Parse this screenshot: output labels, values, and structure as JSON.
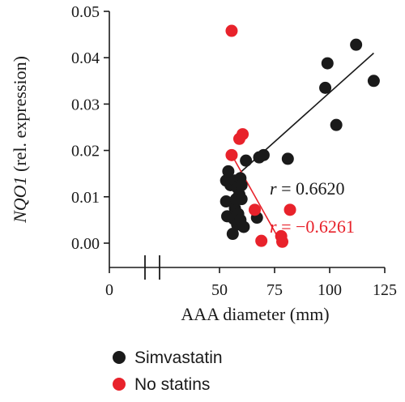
{
  "chart_data": {
    "type": "scatter",
    "xlabel": "AAA diameter (mm)",
    "ylabel_italic": "NQO1",
    "ylabel_rest": " (rel. expression)",
    "xlim": [
      0,
      125
    ],
    "ylim": [
      0,
      0.05
    ],
    "x_ticks": [
      0,
      50,
      75,
      100,
      125
    ],
    "x_tick_labels": [
      "0",
      "50",
      "75",
      "100",
      "125"
    ],
    "y_ticks": [
      0.0,
      0.01,
      0.02,
      0.03,
      0.04,
      0.05
    ],
    "y_tick_labels": [
      "0.00",
      "0.01",
      "0.02",
      "0.03",
      "0.04",
      "0.05"
    ],
    "axis_break": "x between 0 and 50",
    "legend_position": "bottom-left",
    "series": [
      {
        "name": "Simvastatin",
        "color": "#1a1a1a",
        "points": [
          {
            "x": 53,
            "y": 0.0135
          },
          {
            "x": 53,
            "y": 0.009
          },
          {
            "x": 53.5,
            "y": 0.0058
          },
          {
            "x": 54,
            "y": 0.0155
          },
          {
            "x": 55,
            "y": 0.0125
          },
          {
            "x": 56,
            "y": 0.002
          },
          {
            "x": 56.5,
            "y": 0.0052
          },
          {
            "x": 57,
            "y": 0.0135
          },
          {
            "x": 57,
            "y": 0.0075
          },
          {
            "x": 57.5,
            "y": 0.0095
          },
          {
            "x": 58,
            "y": 0.012
          },
          {
            "x": 58,
            "y": 0.004
          },
          {
            "x": 58.5,
            "y": 0.0063
          },
          {
            "x": 59,
            "y": 0.0105
          },
          {
            "x": 59.5,
            "y": 0.014
          },
          {
            "x": 59.5,
            "y": 0.005
          },
          {
            "x": 60,
            "y": 0.0095
          },
          {
            "x": 60,
            "y": 0.0125
          },
          {
            "x": 61,
            "y": 0.0035
          },
          {
            "x": 62,
            "y": 0.0178
          },
          {
            "x": 67,
            "y": 0.0055
          },
          {
            "x": 68,
            "y": 0.0185
          },
          {
            "x": 70,
            "y": 0.019
          },
          {
            "x": 81,
            "y": 0.0182
          },
          {
            "x": 98,
            "y": 0.0335
          },
          {
            "x": 99,
            "y": 0.0388
          },
          {
            "x": 103,
            "y": 0.0255
          },
          {
            "x": 112,
            "y": 0.0428
          },
          {
            "x": 120,
            "y": 0.035
          }
        ],
        "fit": {
          "x": [
            53,
            120
          ],
          "y": [
            0.0125,
            0.041
          ]
        },
        "r_label": "r",
        "r_value": " = 0.6620"
      },
      {
        "name": "No statins",
        "color": "#e8222b",
        "points": [
          {
            "x": 55.5,
            "y": 0.0458
          },
          {
            "x": 55.5,
            "y": 0.019
          },
          {
            "x": 59,
            "y": 0.0225
          },
          {
            "x": 60.5,
            "y": 0.0235
          },
          {
            "x": 66,
            "y": 0.0072
          },
          {
            "x": 69,
            "y": 0.0005
          },
          {
            "x": 78,
            "y": 0.0015
          },
          {
            "x": 78.5,
            "y": 0.0003
          },
          {
            "x": 82,
            "y": 0.0072
          }
        ],
        "fit": {
          "x": [
            55,
            78
          ],
          "y": [
            0.0195,
            0.0
          ]
        },
        "r_label": "r",
        "r_value": " = −0.6261"
      }
    ]
  }
}
